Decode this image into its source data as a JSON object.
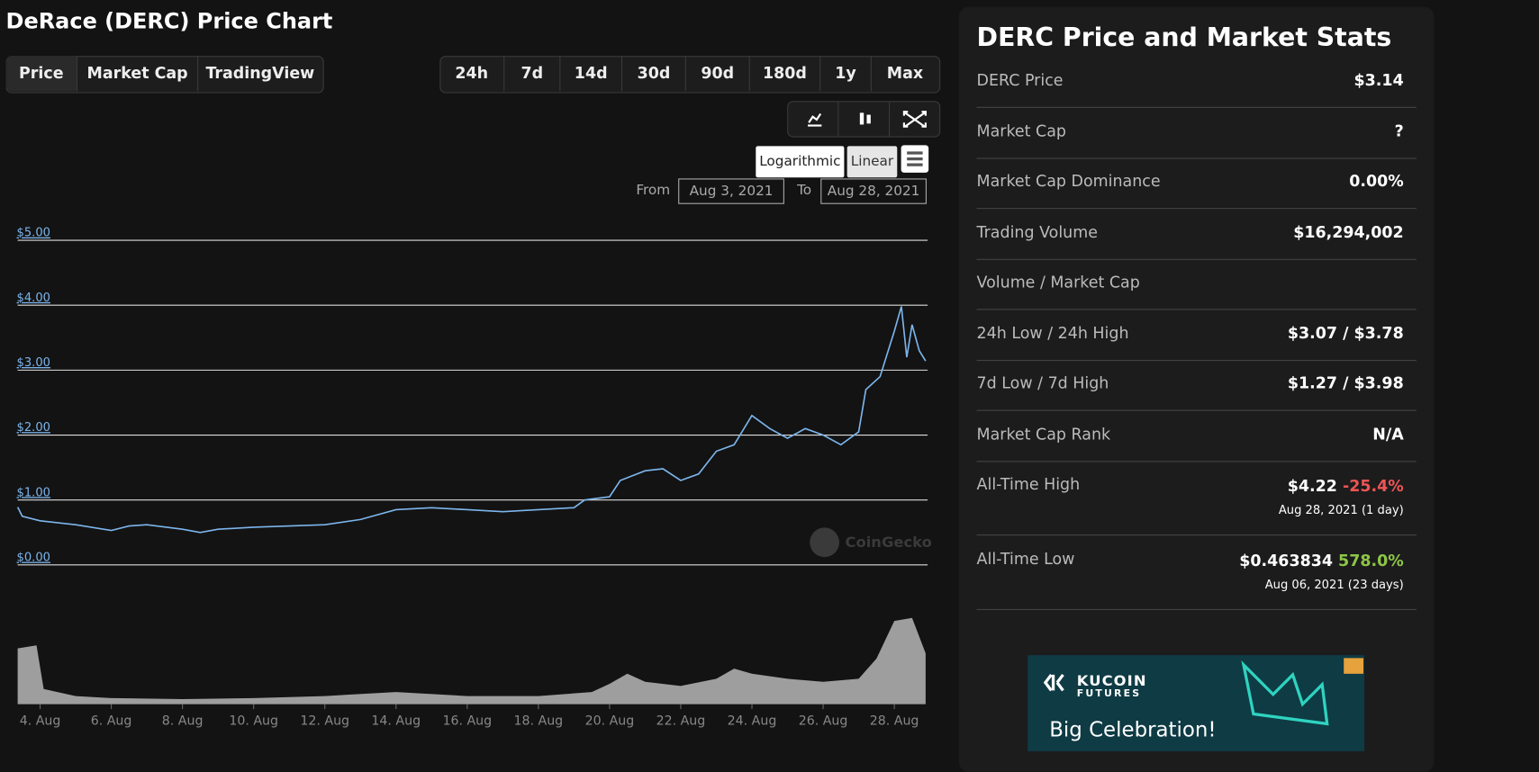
{
  "header": {
    "title": "DeRace (DERC) Price Chart"
  },
  "tabs": [
    "Price",
    "Market Cap",
    "TradingView"
  ],
  "ranges": [
    "24h",
    "7d",
    "14d",
    "30d",
    "90d",
    "180d",
    "1y",
    "Max"
  ],
  "scale_buttons": [
    "Logarithmic",
    "Linear"
  ],
  "date_range": {
    "from_label": "From",
    "from": "Aug 3, 2021",
    "to_label": "To",
    "to": "Aug 28, 2021"
  },
  "watermark": "CoinGecko",
  "chart_data": {
    "type": "line",
    "series": [
      {
        "color": "#7cb5ec",
        "x": [
          3.37,
          3.5,
          4,
          5,
          6,
          6.5,
          7,
          8,
          8.5,
          9,
          10,
          11,
          12,
          13,
          14,
          15,
          16,
          17,
          18,
          19,
          19.3,
          20,
          20.3,
          21,
          21.5,
          22,
          22.5,
          23,
          23.5,
          24,
          24.5,
          25,
          25.5,
          26,
          26.5,
          27,
          27.2,
          27.6,
          28,
          28.2,
          28.35,
          28.5,
          28.7,
          28.88
        ],
        "values": [
          0.89,
          0.75,
          0.68,
          0.62,
          0.53,
          0.6,
          0.62,
          0.55,
          0.5,
          0.55,
          0.58,
          0.6,
          0.62,
          0.7,
          0.85,
          0.88,
          0.85,
          0.82,
          0.85,
          0.88,
          1.0,
          1.05,
          1.3,
          1.45,
          1.48,
          1.3,
          1.4,
          1.75,
          1.85,
          2.3,
          2.1,
          1.95,
          2.1,
          2.0,
          1.85,
          2.05,
          2.7,
          2.9,
          3.6,
          3.98,
          3.2,
          3.7,
          3.3,
          3.14
        ]
      }
    ],
    "ylim": [
      0,
      5
    ],
    "yticks": [
      {
        "value": 0,
        "label": "$0.00"
      },
      {
        "value": 1,
        "label": "$1.00"
      },
      {
        "value": 2,
        "label": "$2.00"
      },
      {
        "value": 3,
        "label": "$3.00"
      },
      {
        "value": 4,
        "label": "$4.00"
      },
      {
        "value": 5,
        "label": "$5.00"
      }
    ],
    "xlim": [
      3.37,
      28.88
    ],
    "xticks": [
      {
        "value": 4,
        "label": "4. Aug"
      },
      {
        "value": 6,
        "label": "6. Aug"
      },
      {
        "value": 8,
        "label": "8. Aug"
      },
      {
        "value": 10,
        "label": "10. Aug"
      },
      {
        "value": 12,
        "label": "12. Aug"
      },
      {
        "value": 14,
        "label": "14. Aug"
      },
      {
        "value": 16,
        "label": "16. Aug"
      },
      {
        "value": 18,
        "label": "18. Aug"
      },
      {
        "value": 20,
        "label": "20. Aug"
      },
      {
        "value": 22,
        "label": "22. Aug"
      },
      {
        "value": 24,
        "label": "24. Aug"
      },
      {
        "value": 26,
        "label": "26. Aug"
      },
      {
        "value": 28,
        "label": "28. Aug"
      }
    ],
    "grid": true,
    "volume": {
      "color": "#9e9e9e",
      "x": [
        3.37,
        3.9,
        4.1,
        5,
        6,
        8,
        10,
        12,
        14,
        16,
        18,
        19.5,
        20,
        20.5,
        21,
        22,
        23,
        23.5,
        24,
        25,
        26,
        27,
        27.5,
        28,
        28.5,
        28.88
      ],
      "values": [
        55,
        58,
        15,
        8,
        6,
        5,
        6,
        8,
        12,
        8,
        8,
        12,
        20,
        30,
        22,
        18,
        25,
        35,
        30,
        25,
        22,
        25,
        45,
        82,
        85,
        50
      ]
    }
  },
  "stats": {
    "title": "DERC Price and Market Stats",
    "rows": [
      [
        "DERC Price",
        "$3.14"
      ],
      [
        "Market Cap",
        "?"
      ],
      [
        "Market Cap Dominance",
        "0.00%"
      ],
      [
        "Trading Volume",
        "$16,294,002"
      ],
      [
        "Volume / Market Cap",
        ""
      ],
      [
        "24h Low / 24h High",
        "$3.07 / $3.78"
      ],
      [
        "7d Low / 7d High",
        "$1.27 / $3.98"
      ],
      [
        "Market Cap Rank",
        "N/A"
      ]
    ],
    "ath": {
      "label": "All-Time High",
      "value": "$4.22",
      "change": "-25.4%",
      "date": "Aug 28, 2021 (1 day)"
    },
    "atl": {
      "label": "All-Time Low",
      "value": "$0.463834",
      "change": "578.0%",
      "date": "Aug 06, 2021 (23 days)"
    }
  },
  "ad": {
    "brand": "KUCOIN",
    "sub": "FUTURES",
    "headline": "Big Celebration!"
  }
}
